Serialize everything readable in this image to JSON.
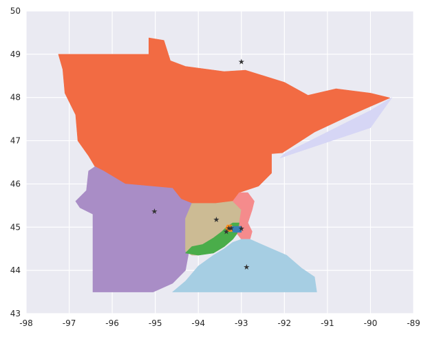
{
  "chart_data": {
    "type": "map",
    "title": "",
    "xlabel": "",
    "ylabel": "",
    "xlim": [
      -98,
      -89
    ],
    "ylim": [
      43,
      50
    ],
    "x_ticks": [
      -98,
      -97,
      -96,
      -95,
      -94,
      -93,
      -92,
      -91,
      -90,
      -89
    ],
    "y_ticks": [
      43,
      44,
      45,
      46,
      47,
      48,
      49,
      50
    ],
    "grid": true,
    "background": "#eaeaf2",
    "regions": [
      {
        "id": "lake-superior",
        "color": "#d6d6f5",
        "polygon": [
          [
            -92.0,
            46.7
          ],
          [
            -90.0,
            47.7
          ],
          [
            -89.5,
            48.0
          ],
          [
            -90.0,
            47.3
          ],
          [
            -91.5,
            46.8
          ],
          [
            -92.1,
            46.6
          ]
        ]
      },
      {
        "id": "north",
        "color": "#f26b43",
        "polygon": [
          [
            -97.25,
            49.0
          ],
          [
            -95.15,
            49.0
          ],
          [
            -95.15,
            49.38
          ],
          [
            -94.8,
            49.32
          ],
          [
            -94.65,
            48.85
          ],
          [
            -94.3,
            48.72
          ],
          [
            -93.4,
            48.6
          ],
          [
            -92.9,
            48.63
          ],
          [
            -92.0,
            48.35
          ],
          [
            -91.45,
            48.05
          ],
          [
            -90.8,
            48.2
          ],
          [
            -90.0,
            48.1
          ],
          [
            -89.55,
            47.99
          ],
          [
            -90.4,
            47.62
          ],
          [
            -91.3,
            47.2
          ],
          [
            -92.05,
            46.72
          ],
          [
            -92.3,
            46.7
          ],
          [
            -92.3,
            46.25
          ],
          [
            -92.6,
            45.95
          ],
          [
            -93.05,
            45.8
          ],
          [
            -93.2,
            45.6
          ],
          [
            -93.6,
            45.55
          ],
          [
            -94.15,
            45.55
          ],
          [
            -94.4,
            45.65
          ],
          [
            -94.6,
            45.9
          ],
          [
            -95.7,
            46.0
          ],
          [
            -96.2,
            46.3
          ],
          [
            -96.4,
            46.4
          ],
          [
            -96.55,
            46.65
          ],
          [
            -96.8,
            47.0
          ],
          [
            -96.85,
            47.6
          ],
          [
            -97.1,
            48.1
          ],
          [
            -97.15,
            48.65
          ],
          [
            -97.25,
            49.0
          ]
        ]
      },
      {
        "id": "southwest",
        "color": "#a98dc6",
        "polygon": [
          [
            -96.4,
            46.4
          ],
          [
            -96.2,
            46.3
          ],
          [
            -95.7,
            46.0
          ],
          [
            -94.6,
            45.9
          ],
          [
            -94.4,
            45.65
          ],
          [
            -94.15,
            45.55
          ],
          [
            -94.15,
            44.8
          ],
          [
            -94.3,
            44.0
          ],
          [
            -94.6,
            43.7
          ],
          [
            -95.05,
            43.5
          ],
          [
            -96.45,
            43.5
          ],
          [
            -96.45,
            45.3
          ],
          [
            -96.75,
            45.45
          ],
          [
            -96.85,
            45.6
          ],
          [
            -96.6,
            45.85
          ],
          [
            -96.55,
            46.3
          ],
          [
            -96.4,
            46.4
          ]
        ]
      },
      {
        "id": "central",
        "color": "#ccbb94",
        "polygon": [
          [
            -94.15,
            45.55
          ],
          [
            -93.6,
            45.55
          ],
          [
            -93.2,
            45.6
          ],
          [
            -93.0,
            45.4
          ],
          [
            -93.05,
            45.1
          ],
          [
            -93.25,
            44.95
          ],
          [
            -93.65,
            44.5
          ],
          [
            -94.0,
            44.35
          ],
          [
            -94.15,
            44.35
          ],
          [
            -94.3,
            44.45
          ],
          [
            -94.3,
            45.2
          ],
          [
            -94.15,
            45.55
          ]
        ]
      },
      {
        "id": "east",
        "color": "#f58b8c",
        "polygon": [
          [
            -93.2,
            45.6
          ],
          [
            -93.05,
            45.8
          ],
          [
            -92.85,
            45.8
          ],
          [
            -92.7,
            45.6
          ],
          [
            -92.75,
            45.4
          ],
          [
            -92.85,
            45.1
          ],
          [
            -92.75,
            44.9
          ],
          [
            -92.8,
            44.72
          ],
          [
            -93.0,
            44.72
          ],
          [
            -93.1,
            44.85
          ],
          [
            -93.05,
            45.1
          ],
          [
            -93.0,
            45.4
          ],
          [
            -93.2,
            45.6
          ]
        ]
      },
      {
        "id": "southeast",
        "color": "#a6cee3",
        "polygon": [
          [
            -93.0,
            44.72
          ],
          [
            -92.8,
            44.72
          ],
          [
            -92.3,
            44.5
          ],
          [
            -91.95,
            44.35
          ],
          [
            -91.6,
            44.05
          ],
          [
            -91.3,
            43.85
          ],
          [
            -91.25,
            43.5
          ],
          [
            -94.6,
            43.5
          ],
          [
            -94.3,
            43.75
          ],
          [
            -94.0,
            44.1
          ],
          [
            -93.65,
            44.35
          ],
          [
            -93.4,
            44.5
          ],
          [
            -93.2,
            44.65
          ],
          [
            -93.0,
            44.72
          ]
        ]
      },
      {
        "id": "metro-ring",
        "color": "#4aad4a",
        "polygon": [
          [
            -93.05,
            45.1
          ],
          [
            -93.1,
            44.85
          ],
          [
            -93.2,
            44.72
          ],
          [
            -93.4,
            44.55
          ],
          [
            -93.65,
            44.4
          ],
          [
            -94.0,
            44.35
          ],
          [
            -94.3,
            44.4
          ],
          [
            -94.15,
            44.55
          ],
          [
            -93.9,
            44.6
          ],
          [
            -93.65,
            44.75
          ],
          [
            -93.45,
            44.9
          ],
          [
            -93.35,
            45.0
          ],
          [
            -93.2,
            45.1
          ],
          [
            -93.05,
            45.1
          ]
        ]
      },
      {
        "id": "minneapolis",
        "color": "#ff8c1a",
        "polygon": [
          [
            -93.33,
            45.05
          ],
          [
            -93.22,
            45.05
          ],
          [
            -93.2,
            44.9
          ],
          [
            -93.33,
            44.9
          ],
          [
            -93.37,
            44.97
          ],
          [
            -93.33,
            45.05
          ]
        ]
      },
      {
        "id": "st-paul",
        "color": "#3a7fb5",
        "polygon": [
          [
            -93.22,
            45.02
          ],
          [
            -93.0,
            45.02
          ],
          [
            -93.0,
            44.88
          ],
          [
            -93.2,
            44.88
          ],
          [
            -93.22,
            45.02
          ]
        ]
      }
    ],
    "markers": [
      {
        "name": "centroid-north",
        "x": -93.0,
        "y": 48.83,
        "symbol": "★"
      },
      {
        "name": "centroid-southwest",
        "x": -95.02,
        "y": 45.37,
        "symbol": "★"
      },
      {
        "name": "centroid-central",
        "x": -93.58,
        "y": 45.18,
        "symbol": "★"
      },
      {
        "name": "centroid-east",
        "x": -93.0,
        "y": 44.97,
        "symbol": "★"
      },
      {
        "name": "centroid-minneapolis",
        "x": -93.29,
        "y": 44.98,
        "symbol": "★"
      },
      {
        "name": "centroid-st-paul",
        "x": -93.24,
        "y": 44.98,
        "symbol": "★"
      },
      {
        "name": "centroid-metro-ring",
        "x": -93.35,
        "y": 44.9,
        "symbol": "★"
      },
      {
        "name": "centroid-southeast",
        "x": -92.88,
        "y": 44.08,
        "symbol": "★"
      }
    ],
    "marker_color": "#333333"
  }
}
